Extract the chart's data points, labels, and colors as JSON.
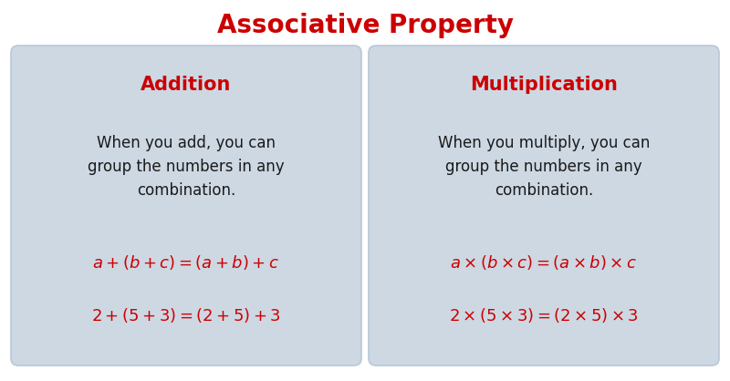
{
  "title": "Associative Property",
  "title_color": "#CC0000",
  "title_fontsize": 20,
  "background_color": "#FFFFFF",
  "box_bg_color": "#CDD8E3",
  "box_edge_color": "#B8C8D8",
  "left_header": "Addition",
  "right_header": "Multiplication",
  "header_color": "#CC0000",
  "header_fontsize": 15,
  "body_color": "#1a1a1a",
  "body_fontsize": 12,
  "formula_color": "#CC0000",
  "formula_fontsize": 13,
  "left_body": "When you add, you can\ngroup the numbers in any\ncombination.",
  "right_body": "When you multiply, you can\ngroup the numbers in any\ncombination.",
  "left_formula1": "$a+(b+c)=(a+b)+c$",
  "left_formula2": "$2+(5+3)=(2+5)+3$",
  "right_formula1": "$a\\times(b\\times c)=(a\\times b)\\times c$",
  "right_formula2": "$2\\times(5\\times3)=(2\\times5)\\times3$",
  "fig_width": 8.0,
  "fig_height": 4.18,
  "dpi": 100
}
